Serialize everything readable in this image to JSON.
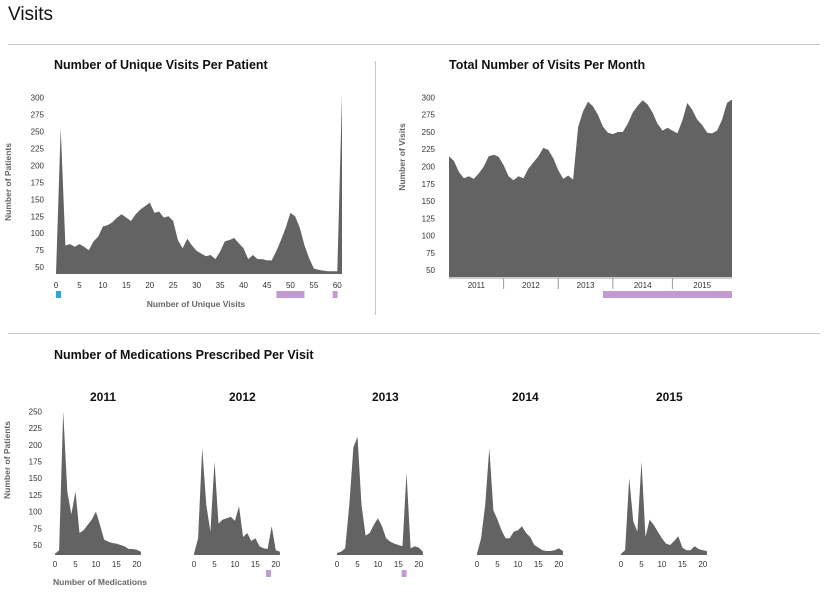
{
  "page": {
    "title": "Visits"
  },
  "colors": {
    "area": "#636363",
    "blue_marker": "#2aa7e0",
    "purple_marker": "#c49bd1",
    "axis_text": "#333333",
    "label_text": "#666666"
  },
  "chart_data": [
    {
      "id": "unique",
      "type": "area",
      "title": "Number of Unique Visits Per Patient",
      "xlabel": "Number of Unique Visits",
      "ylabel": "Number of Patients",
      "xlim": [
        0,
        61
      ],
      "ylim": [
        40,
        305
      ],
      "xticks": [
        0,
        5,
        10,
        15,
        20,
        25,
        30,
        35,
        40,
        45,
        50,
        55,
        60
      ],
      "yticks": [
        50,
        75,
        100,
        125,
        150,
        175,
        200,
        225,
        250,
        275,
        300
      ],
      "x": [
        0,
        1,
        2,
        3,
        4,
        5,
        6,
        7,
        8,
        9,
        10,
        11,
        12,
        13,
        14,
        15,
        16,
        17,
        18,
        19,
        20,
        21,
        22,
        23,
        24,
        25,
        26,
        27,
        28,
        29,
        30,
        31,
        32,
        33,
        34,
        35,
        36,
        37,
        38,
        39,
        40,
        41,
        42,
        43,
        44,
        45,
        46,
        47,
        48,
        49,
        50,
        51,
        52,
        53,
        54,
        55,
        56,
        57,
        58,
        59,
        60,
        61
      ],
      "values": [
        40,
        255,
        82,
        84,
        80,
        84,
        80,
        75,
        88,
        95,
        110,
        112,
        116,
        123,
        128,
        123,
        118,
        128,
        135,
        140,
        145,
        130,
        132,
        123,
        125,
        118,
        90,
        78,
        92,
        82,
        74,
        70,
        66,
        68,
        62,
        73,
        88,
        90,
        93,
        85,
        78,
        62,
        68,
        62,
        62,
        60,
        60,
        74,
        90,
        108,
        130,
        125,
        108,
        82,
        63,
        48,
        46,
        45,
        44,
        44,
        44,
        305
      ],
      "markers": [
        {
          "from": 0,
          "to": 1,
          "color": "blue"
        },
        {
          "from": 47,
          "to": 53,
          "color": "purple"
        },
        {
          "from": 59,
          "to": 60,
          "color": "purple"
        }
      ]
    },
    {
      "id": "monthly",
      "type": "area",
      "title": "Total Number of Visits Per Month",
      "ylabel": "Number of Visits",
      "ylim": [
        40,
        305
      ],
      "yticks": [
        50,
        75,
        100,
        125,
        150,
        175,
        200,
        225,
        250,
        275,
        300
      ],
      "year_labels": [
        "2011",
        "2012",
        "2013",
        "2014",
        "2015"
      ],
      "year_bounds": [
        0,
        11,
        22,
        33,
        45,
        57
      ],
      "values": [
        215,
        208,
        192,
        183,
        186,
        182,
        190,
        200,
        215,
        217,
        214,
        202,
        186,
        180,
        186,
        183,
        197,
        206,
        215,
        227,
        224,
        212,
        195,
        182,
        187,
        181,
        257,
        280,
        294,
        287,
        275,
        258,
        249,
        247,
        250,
        250,
        262,
        278,
        288,
        296,
        290,
        278,
        262,
        252,
        256,
        252,
        248,
        267,
        292,
        282,
        268,
        260,
        249,
        248,
        252,
        268,
        292,
        297
      ],
      "markers": [
        {
          "from": 31,
          "to": 57,
          "color": "purple"
        }
      ]
    }
  ],
  "section2": {
    "title": "Number of Medications Prescribed Per Visit"
  },
  "med_charts": {
    "ylabel": "Number of Patients",
    "xlabel": "Number of Medications",
    "ylim": [
      35,
      255
    ],
    "yticks": [
      50,
      75,
      100,
      125,
      150,
      175,
      200,
      225,
      250
    ],
    "xticks": [
      0,
      5,
      10,
      15,
      20
    ],
    "xlim": [
      0,
      22
    ],
    "x": [
      0,
      1,
      2,
      3,
      4,
      5,
      6,
      7,
      8,
      9,
      10,
      11,
      12,
      13,
      14,
      15,
      16,
      17,
      18,
      19,
      20,
      21
    ],
    "charts": [
      {
        "year": "2011",
        "values": [
          37,
          42,
          250,
          130,
          96,
          130,
          68,
          72,
          80,
          88,
          100,
          80,
          58,
          55,
          53,
          52,
          50,
          48,
          44,
          44,
          43,
          40
        ]
      },
      {
        "year": "2012",
        "values": [
          37,
          60,
          195,
          110,
          70,
          175,
          82,
          88,
          90,
          92,
          86,
          108,
          62,
          68,
          56,
          60,
          48,
          45,
          44,
          78,
          42,
          40
        ],
        "marker": {
          "from": 17.6,
          "to": 18.6
        }
      },
      {
        "year": "2013",
        "values": [
          38,
          40,
          45,
          110,
          196,
          212,
          110,
          64,
          68,
          80,
          90,
          78,
          60,
          55,
          52,
          50,
          48,
          158,
          45,
          48,
          46,
          40
        ],
        "marker": {
          "from": 15.8,
          "to": 16.7
        }
      },
      {
        "year": "2014",
        "values": [
          37,
          60,
          110,
          195,
          102,
          88,
          72,
          60,
          60,
          70,
          72,
          78,
          68,
          62,
          50,
          46,
          42,
          41,
          41,
          42,
          45,
          41
        ]
      },
      {
        "year": "2015",
        "values": [
          37,
          42,
          150,
          85,
          70,
          175,
          62,
          88,
          80,
          70,
          60,
          52,
          50,
          56,
          63,
          46,
          42,
          42,
          48,
          44,
          42,
          41
        ]
      }
    ]
  }
}
